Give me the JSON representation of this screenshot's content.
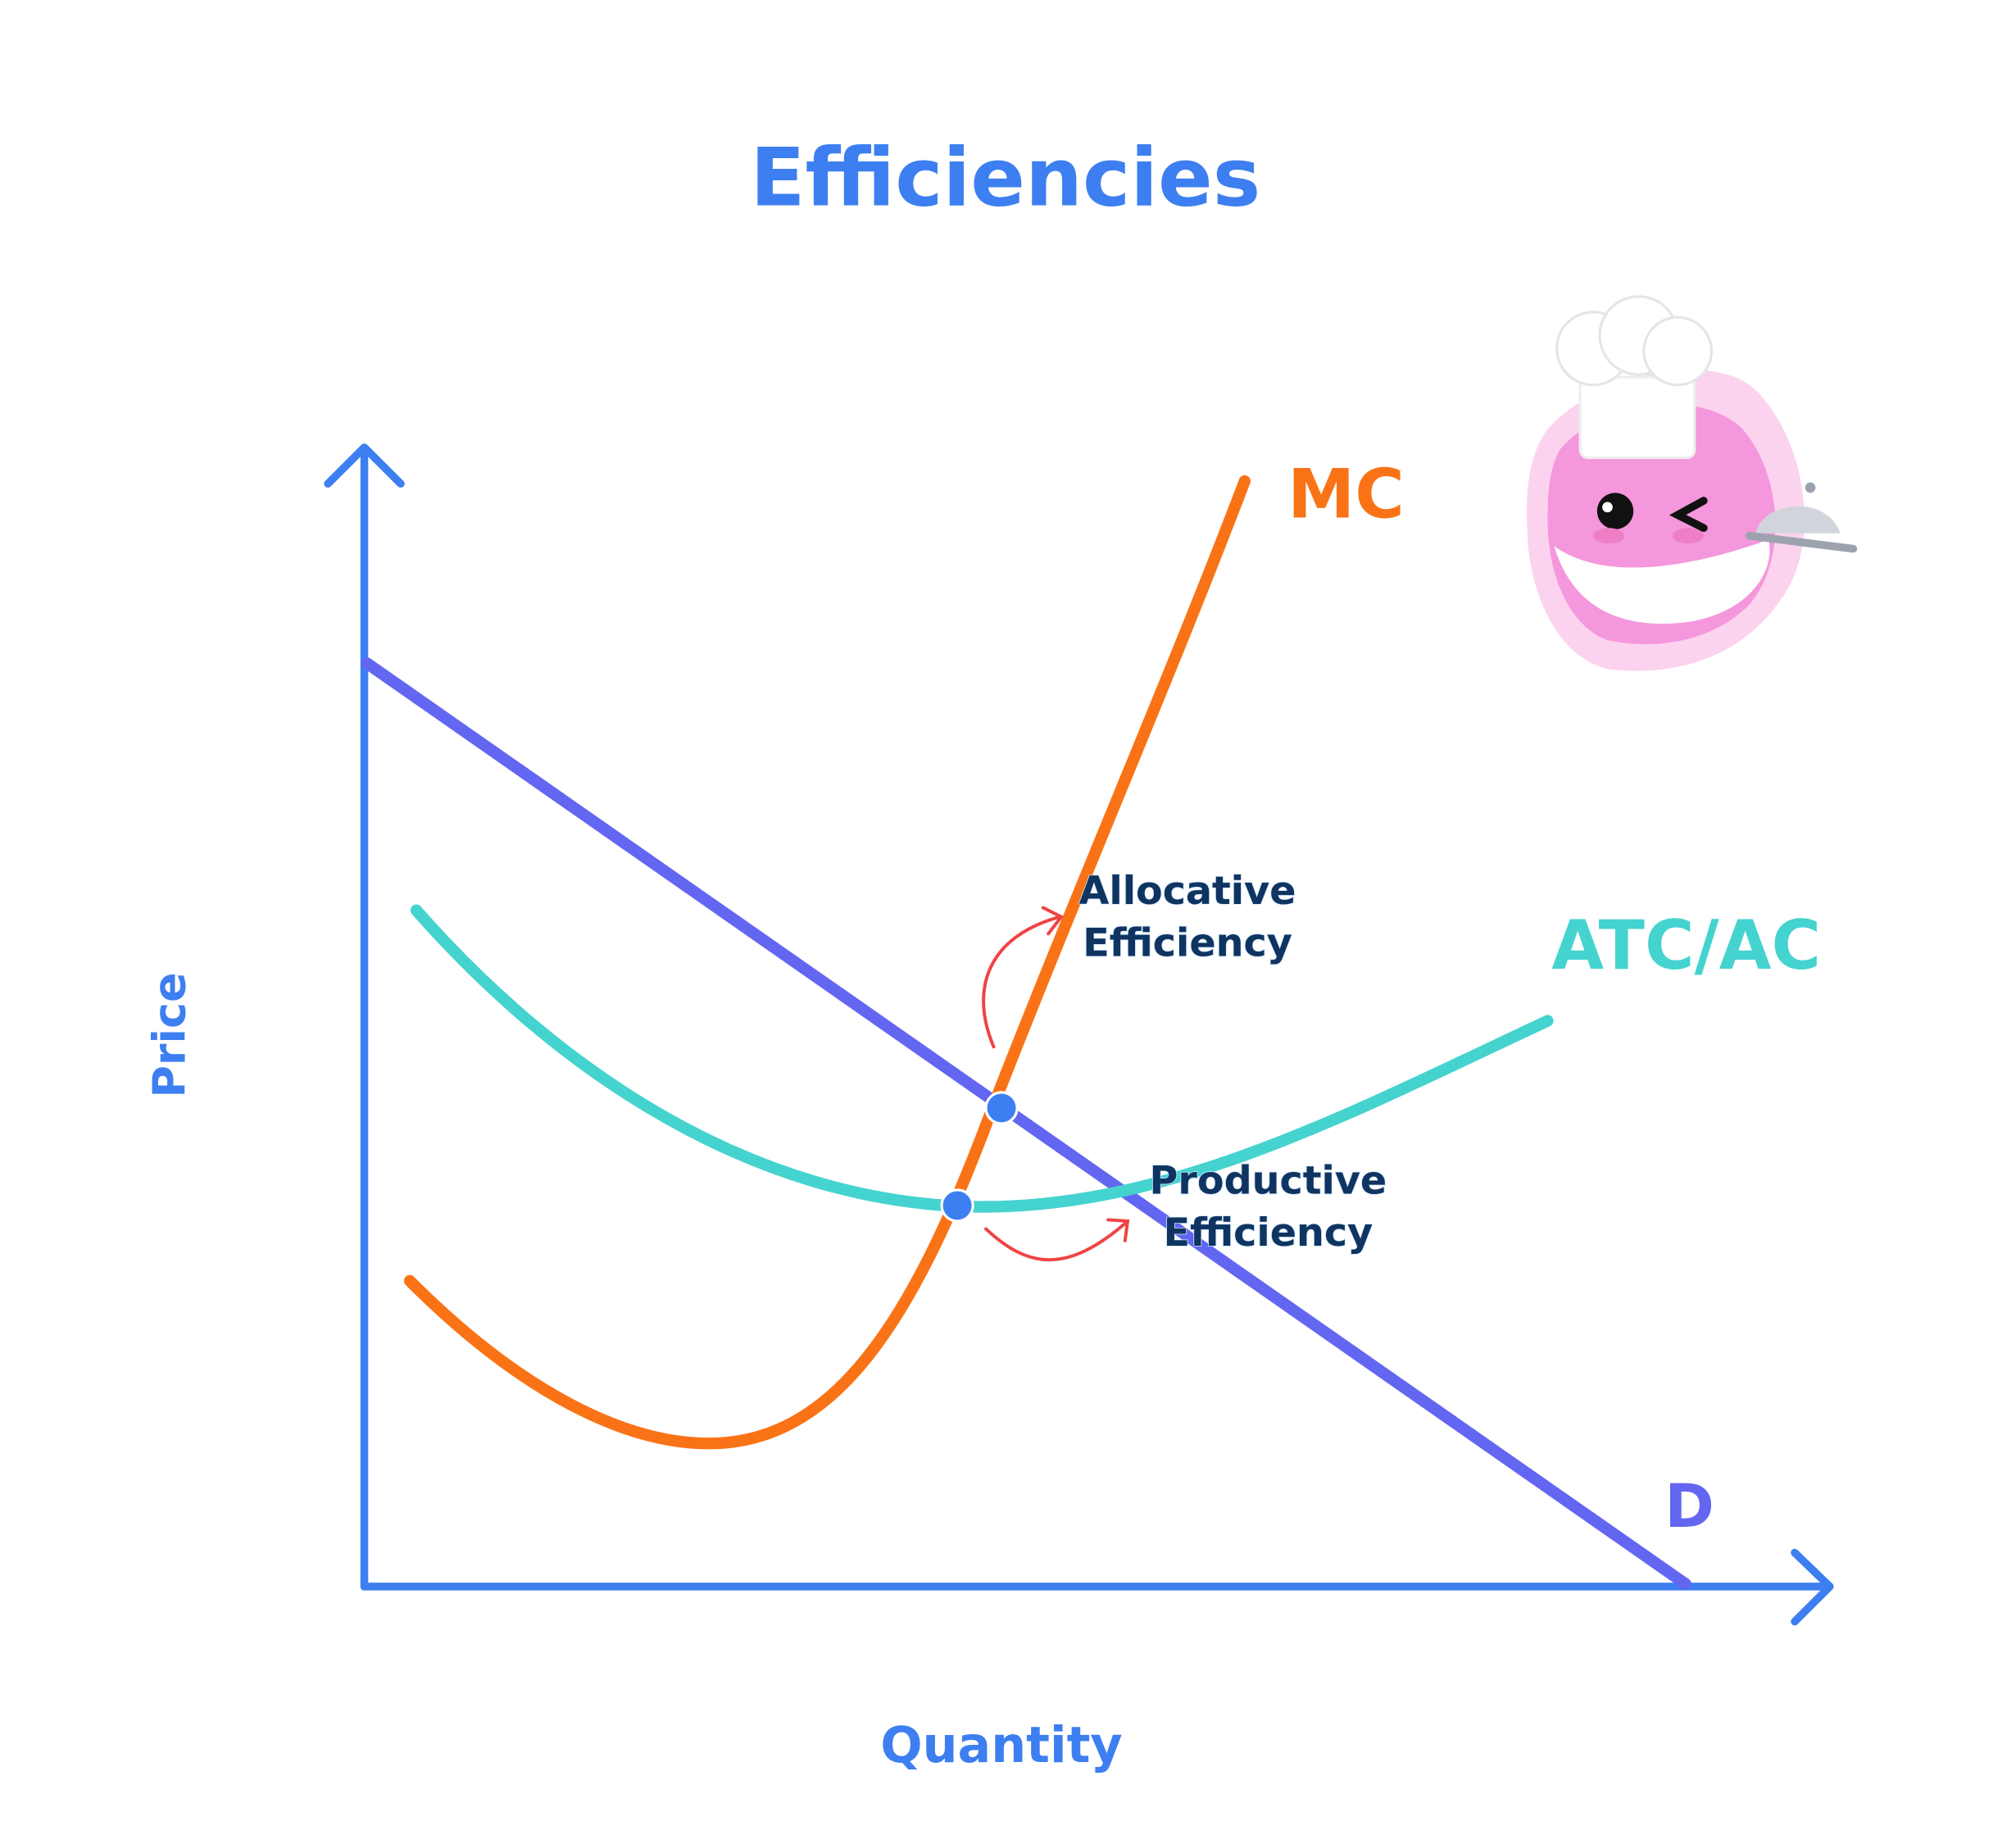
{
  "title": "Efficiencies",
  "axes": {
    "x_label": "Quantity",
    "y_label": "Price"
  },
  "curves": [
    {
      "label": "MC"
    },
    {
      "label": "ATC/AC"
    },
    {
      "label": "D"
    }
  ],
  "annotations": [
    {
      "lines": [
        "Allocative",
        "Efficiency"
      ]
    },
    {
      "lines": [
        "Productive",
        "Efficiency"
      ]
    }
  ]
}
